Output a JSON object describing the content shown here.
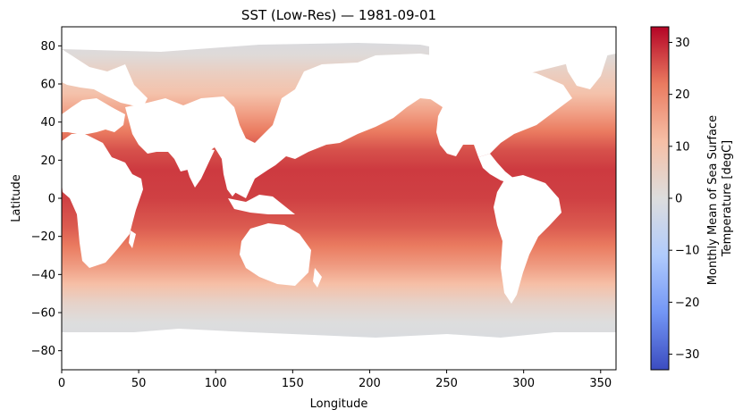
{
  "chart_data": {
    "type": "heatmap",
    "title": "SST (Low-Res) — 1981-09-01",
    "xlabel": "Longitude",
    "ylabel": "Latitude",
    "xlim": [
      0,
      360
    ],
    "ylim": [
      -90,
      90
    ],
    "xticks": [
      0,
      50,
      100,
      150,
      200,
      250,
      300,
      350
    ],
    "yticks": [
      -80,
      -60,
      -40,
      -20,
      0,
      20,
      40,
      60,
      80
    ],
    "colorbar": {
      "label_line1": "Monthly Mean of Sea Surface",
      "label_line2": "Temperature [degC]",
      "range": [
        -33,
        33
      ],
      "ticks": [
        -30,
        -20,
        -10,
        0,
        10,
        20,
        30
      ],
      "colormap": "coolwarm",
      "colors": [
        "#3b4cc0",
        "#7396f5",
        "#b0cbfc",
        "#dddddd",
        "#f6bfa6",
        "#ea7b60",
        "#b40426"
      ]
    },
    "land_color": "#ffffff",
    "ocean_temperature_bands": [
      {
        "lat_range": [
          -90,
          -70
        ],
        "value": -1.5
      },
      {
        "lat_range": [
          -70,
          -60
        ],
        "value": 0
      },
      {
        "lat_range": [
          -60,
          -50
        ],
        "value": 4
      },
      {
        "lat_range": [
          -50,
          -40
        ],
        "value": 11
      },
      {
        "lat_range": [
          -40,
          -30
        ],
        "value": 17
      },
      {
        "lat_range": [
          -30,
          -20
        ],
        "value": 22
      },
      {
        "lat_range": [
          -20,
          -10
        ],
        "value": 25
      },
      {
        "lat_range": [
          -10,
          10
        ],
        "value": 27.5
      },
      {
        "lat_range": [
          10,
          20
        ],
        "value": 28
      },
      {
        "lat_range": [
          20,
          30
        ],
        "value": 26
      },
      {
        "lat_range": [
          30,
          40
        ],
        "value": 22
      },
      {
        "lat_range": [
          40,
          50
        ],
        "value": 16
      },
      {
        "lat_range": [
          50,
          60
        ],
        "value": 10
      },
      {
        "lat_range": [
          60,
          70
        ],
        "value": 6
      },
      {
        "lat_range": [
          70,
          80
        ],
        "value": 1
      },
      {
        "lat_range": [
          80,
          90
        ],
        "value": -1.5
      }
    ]
  }
}
